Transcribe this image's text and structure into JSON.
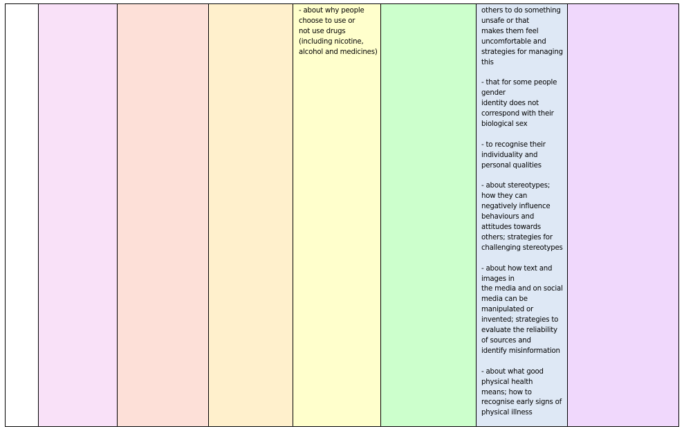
{
  "table": {
    "columns": [
      {
        "color": "#ffffff",
        "text": ""
      },
      {
        "color": "#f9e1f8",
        "text": ""
      },
      {
        "color": "#fde0d8",
        "text": ""
      },
      {
        "color": "#fff0cc",
        "text": ""
      },
      {
        "color": "#ffffcc",
        "text": "- about why people\nchoose to use or\nnot use drugs\n(including nicotine,\nalcohol and medicines)"
      },
      {
        "color": "#ccffcc",
        "text": ""
      },
      {
        "color": "#dee8f5",
        "text": "others to do something\nunsafe or that\nmakes them feel\nuncomfortable and\nstrategies for managing\nthis\n\n- that for some people\ngender\nidentity does not\ncorrespond with their\nbiological sex\n\n- to recognise their\nindividuality and\npersonal qualities\n\n- about stereotypes;\nhow they can\nnegatively influence\nbehaviours and\nattitudes towards\nothers; strategies for\nchallenging stereotypes\n\n- about how text and\nimages in\nthe media and on social\nmedia can be\nmanipulated or\ninvented; strategies to\nevaluate the reliability\nof sources and\nidentify misinformation\n\n- about what good\nphysical health\nmeans; how to\nrecognise early signs of\nphysical illness"
      },
      {
        "color": "#f0d8fc",
        "text": ""
      }
    ]
  }
}
